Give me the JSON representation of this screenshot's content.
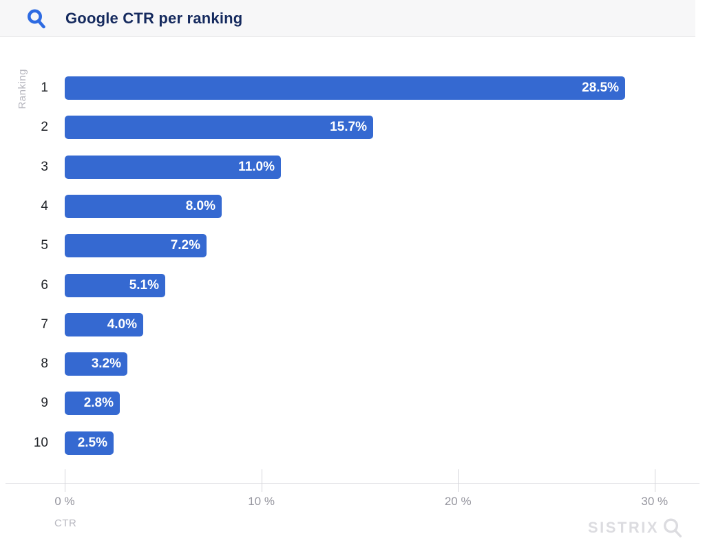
{
  "header": {
    "title": "Google CTR per ranking",
    "icon": "search-icon"
  },
  "chart_data": {
    "type": "bar",
    "orientation": "horizontal",
    "title": "Google CTR per ranking",
    "categories": [
      "1",
      "2",
      "3",
      "4",
      "5",
      "6",
      "7",
      "8",
      "9",
      "10"
    ],
    "values": [
      28.5,
      15.7,
      11.0,
      8.0,
      7.2,
      5.1,
      4.0,
      3.2,
      2.8,
      2.5
    ],
    "value_labels": [
      "28.5%",
      "15.7%",
      "11.0%",
      "8.0%",
      "7.2%",
      "5.1%",
      "4.0%",
      "3.2%",
      "2.8%",
      "2.5%"
    ],
    "xlabel": "CTR",
    "ylabel": "Ranking",
    "x_tick_labels": [
      "0 %",
      "10 %",
      "20 %",
      "30 %"
    ],
    "x_tick_values": [
      0,
      10,
      20,
      30
    ],
    "xlim": [
      0,
      32.5
    ],
    "grid": false,
    "legend": "none",
    "bar_color": "#3569d1",
    "bar_label_color": "#ffffff"
  },
  "watermark": {
    "text": "SISTRIX",
    "icon": "magnifier-icon"
  },
  "colors": {
    "header_bg": "#f7f7f8",
    "header_border": "#e4e4e6",
    "title_text": "#152a5e",
    "header_icon_blue": "#2e6be2",
    "bar_blue": "#3569d1",
    "category_text": "#212429",
    "axis_line": "#e5e5e9",
    "tick_line": "#d5d5da",
    "tick_text": "#94949d",
    "axis_title_text": "#b8b8c0",
    "watermark_gray": "#dcdce0"
  }
}
